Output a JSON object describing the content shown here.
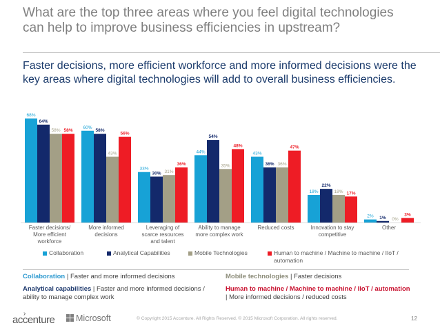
{
  "title": "What are the top three areas where you feel digital technologies can help to improve business efficiencies in upstream?",
  "subtitle": "Faster decisions, more efficient workforce and more informed decisions were the key areas where digital technologies will add to overall business efficiencies.",
  "colors": {
    "Collaboration": "#17a2d6",
    "Analytical Capabilities": "#13296b",
    "Mobile Technologies": "#a39f86",
    "Human to machine / Machine to machine / IIoT / automation": "#ee1c25"
  },
  "chart_data": {
    "type": "bar",
    "categories": [
      "Faster decisions/\nMore efficient\nworkforce",
      "More informed\ndecisions",
      "Leveraging of\nscarce resources\nand talent",
      "Ability to manage\nmore complex work",
      "Reduced costs",
      "Innovation to stay\ncompetitive",
      "Other"
    ],
    "series": [
      {
        "name": "Collaboration",
        "values": [
          68,
          60,
          33,
          44,
          43,
          18,
          2
        ]
      },
      {
        "name": "Analytical Capabilities",
        "values": [
          64,
          58,
          30,
          54,
          36,
          22,
          1
        ]
      },
      {
        "name": "Mobile Technologies",
        "values": [
          58,
          43,
          31,
          35,
          36,
          18,
          0
        ]
      },
      {
        "name": "Human to machine / Machine to machine / IIoT / automation",
        "values": [
          58,
          56,
          36,
          48,
          47,
          17,
          3
        ]
      }
    ],
    "value_suffix": "%",
    "ylim": [
      0,
      68
    ],
    "grid": false,
    "legend": "bottom"
  },
  "notes": {
    "collab_head": "Collaboration",
    "collab_text": " | Faster and more informed decisions",
    "anal_head": "Analytical capabilities",
    "anal_text": " | Faster and more informed decisions / ability to manage complex work",
    "mob_head": "Mobile technologies",
    "mob_text": " | Faster decisions",
    "hm_head": "Human to machine / Machine to machine / IIoT / automation",
    "hm_text": " | More informed decisions / reduced costs"
  },
  "footer": {
    "accenture": "accenture",
    "microsoft": "Microsoft",
    "copyright": "© Copyright 2015 Accenture. All Rights Reserved. © 2015 Microsoft Corporation. All rights reserved.",
    "page": "12"
  }
}
